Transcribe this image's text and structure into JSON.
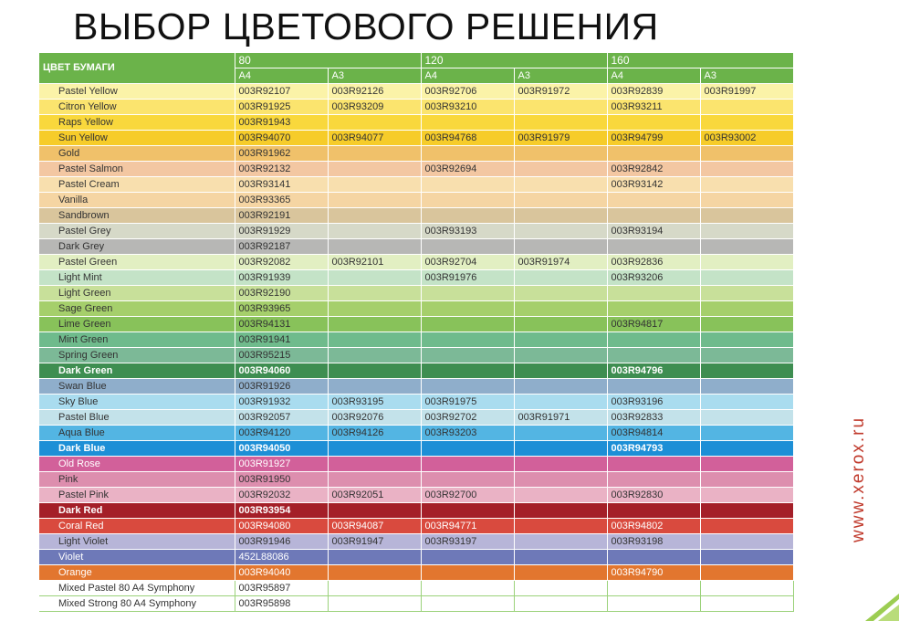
{
  "title": "ВЫБОР ЦВЕТОВОГО РЕШЕНИЯ",
  "watermark": "www.xerox.ru",
  "table": {
    "header_label": "ЦВЕТ БУМАГИ",
    "weights": [
      "80",
      "120",
      "160"
    ],
    "sizes": [
      "A4",
      "A3",
      "A4",
      "A3",
      "A4",
      "A3"
    ],
    "rows": [
      {
        "name": "Pastel Yellow",
        "bg": "#fbf3a8",
        "cells": [
          "003R92107",
          "003R92126",
          "003R92706",
          "003R91972",
          "003R92839",
          "003R91997"
        ]
      },
      {
        "name": "Citron Yellow",
        "bg": "#fbe46e",
        "cells": [
          "003R91925",
          "003R93209",
          "003R93210",
          "",
          "003R93211",
          ""
        ]
      },
      {
        "name": "Raps Yellow",
        "bg": "#f9d83c",
        "cells": [
          "003R91943",
          "",
          "",
          "",
          "",
          ""
        ]
      },
      {
        "name": "Sun Yellow",
        "bg": "#f6cc2a",
        "cells": [
          "003R94070",
          "003R94077",
          "003R94768",
          "003R91979",
          "003R94799",
          "003R93002"
        ]
      },
      {
        "name": "Gold",
        "bg": "#f0c16a",
        "cells": [
          "003R91962",
          "",
          "",
          "",
          "",
          ""
        ]
      },
      {
        "name": "Pastel Salmon",
        "bg": "#f3c7a2",
        "cells": [
          "003R92132",
          "",
          "003R92694",
          "",
          "003R92842",
          ""
        ]
      },
      {
        "name": "Pastel Cream",
        "bg": "#f8dfae",
        "cells": [
          "003R93141",
          "",
          "",
          "",
          "003R93142",
          ""
        ]
      },
      {
        "name": "Vanilla",
        "bg": "#f5d5a3",
        "cells": [
          "003R93365",
          "",
          "",
          "",
          "",
          ""
        ]
      },
      {
        "name": "Sandbrown",
        "bg": "#d9c59c",
        "cells": [
          "003R92191",
          "",
          "",
          "",
          "",
          ""
        ]
      },
      {
        "name": "Pastel Grey",
        "bg": "#d6d9c8",
        "cells": [
          "003R91929",
          "",
          "003R93193",
          "",
          "003R93194",
          ""
        ]
      },
      {
        "name": "Dark Grey",
        "bg": "#b7b7b5",
        "cells": [
          "003R92187",
          "",
          "",
          "",
          "",
          ""
        ]
      },
      {
        "name": "Pastel Green",
        "bg": "#e2efc2",
        "cells": [
          "003R92082",
          "003R92101",
          "003R92704",
          "003R91974",
          "003R92836",
          ""
        ]
      },
      {
        "name": "Light Mint",
        "bg": "#c4e3c7",
        "cells": [
          "003R91939",
          "",
          "003R91976",
          "",
          "003R93206",
          ""
        ]
      },
      {
        "name": "Light Green",
        "bg": "#c8e09a",
        "cells": [
          "003R92190",
          "",
          "",
          "",
          "",
          ""
        ]
      },
      {
        "name": "Sage Green",
        "bg": "#a5cf6b",
        "cells": [
          "003R93965",
          "",
          "",
          "",
          "",
          ""
        ]
      },
      {
        "name": "Lime Green",
        "bg": "#88c25a",
        "cells": [
          "003R94131",
          "",
          "",
          "",
          "003R94817",
          ""
        ]
      },
      {
        "name": "Mint Green",
        "bg": "#6fbb8c",
        "cells": [
          "003R91941",
          "",
          "",
          "",
          "",
          ""
        ]
      },
      {
        "name": "Spring Green",
        "bg": "#7cb997",
        "cells": [
          "003R95215",
          "",
          "",
          "",
          "",
          ""
        ]
      },
      {
        "name": "Dark Green",
        "bg": "#3e8e51",
        "bold": true,
        "white": true,
        "cells": [
          "003R94060",
          "",
          "",
          "",
          "003R94796",
          ""
        ]
      },
      {
        "name": "Swan Blue",
        "bg": "#8faecb",
        "cells": [
          "003R91926",
          "",
          "",
          "",
          "",
          ""
        ]
      },
      {
        "name": "Sky Blue",
        "bg": "#a9dcef",
        "cells": [
          "003R91932",
          "003R93195",
          "003R91975",
          "",
          "003R93196",
          ""
        ]
      },
      {
        "name": "Pastel Blue",
        "bg": "#c3e2ea",
        "cells": [
          "003R92057",
          "003R92076",
          "003R92702",
          "003R91971",
          "003R92833",
          ""
        ]
      },
      {
        "name": "Aqua Blue",
        "bg": "#53b5e3",
        "cells": [
          "003R94120",
          "003R94126",
          "003R93203",
          "",
          "003R94814",
          ""
        ]
      },
      {
        "name": "Dark Blue",
        "bg": "#1d8fd6",
        "bold": true,
        "white": true,
        "cells": [
          "003R94050",
          "",
          "",
          "",
          "003R94793",
          ""
        ]
      },
      {
        "name": "Old Rose",
        "bg": "#d2609a",
        "white": true,
        "cells": [
          "003R91927",
          "",
          "",
          "",
          "",
          ""
        ]
      },
      {
        "name": "Pink",
        "bg": "#dd8eae",
        "cells": [
          "003R91950",
          "",
          "",
          "",
          "",
          ""
        ]
      },
      {
        "name": "Pastel Pink",
        "bg": "#eab2c5",
        "cells": [
          "003R92032",
          "003R92051",
          "003R92700",
          "",
          "003R92830",
          ""
        ]
      },
      {
        "name": "Dark Red",
        "bg": "#a41f28",
        "bold": true,
        "white": true,
        "cells": [
          "003R93954",
          "",
          "",
          "",
          "",
          ""
        ]
      },
      {
        "name": "Coral Red",
        "bg": "#d94a3e",
        "white": true,
        "cells": [
          "003R94080",
          "003R94087",
          "003R94771",
          "",
          "003R94802",
          ""
        ]
      },
      {
        "name": "Light Violet",
        "bg": "#b7b5d8",
        "cells": [
          "003R91946",
          "003R91947",
          "003R93197",
          "",
          "003R93198",
          ""
        ]
      },
      {
        "name": "Violet",
        "bg": "#6e79b8",
        "white": true,
        "cells": [
          "452L88086",
          "",
          "",
          "",
          "",
          ""
        ]
      },
      {
        "name": "Orange",
        "bg": "#e2762f",
        "white": true,
        "cells": [
          "003R94040",
          "",
          "",
          "",
          "003R94790",
          ""
        ]
      },
      {
        "name": "Mixed Pastel 80 A4 Symphony",
        "bg": "#ffffff",
        "plain": true,
        "cells": [
          "003R95897",
          "",
          "",
          "",
          "",
          ""
        ]
      },
      {
        "name": "Mixed Strong 80 A4 Symphony",
        "bg": "#ffffff",
        "plain": true,
        "cells": [
          "003R95898",
          "",
          "",
          "",
          "",
          ""
        ]
      }
    ]
  }
}
